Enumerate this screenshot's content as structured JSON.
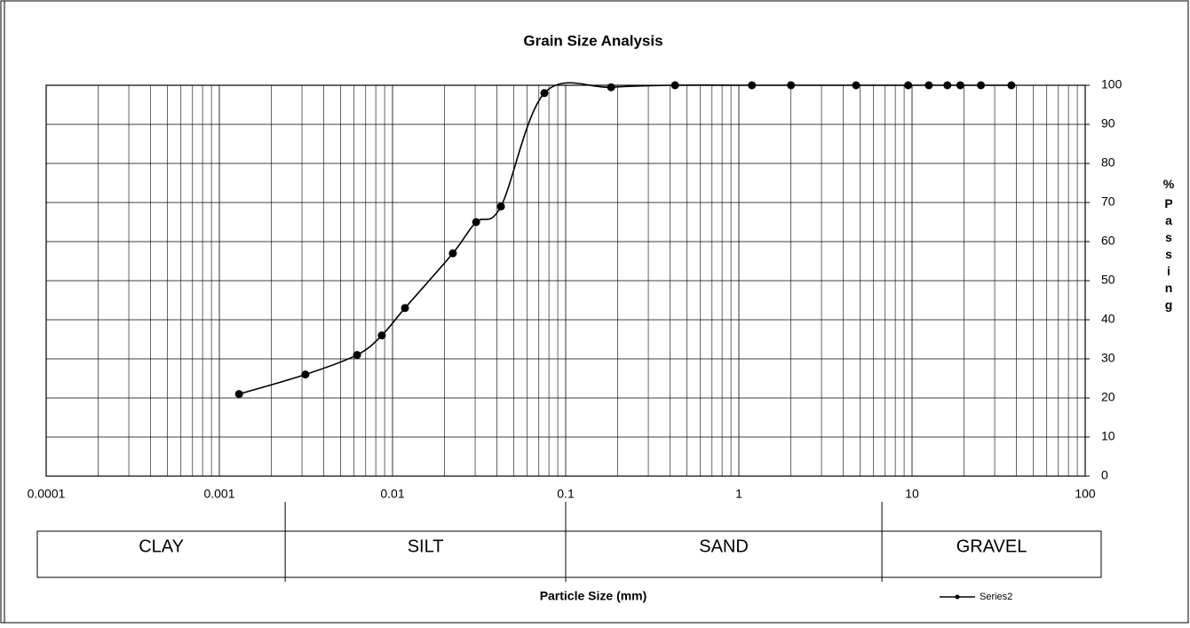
{
  "chart_data": {
    "type": "line",
    "title": "Grain Size Analysis",
    "x_label": "Particle Size (mm)",
    "y_label": "% Passing",
    "log_x": true,
    "grid": true,
    "legend_position": "bottom-right",
    "xlim": [
      0.0001,
      100
    ],
    "xticks": [
      0.0001,
      0.001,
      0.01,
      0.1,
      1,
      10,
      100
    ],
    "xminorticks": [
      0.0002,
      0.0003,
      0.0004,
      0.0005,
      0.0006,
      0.0007,
      0.0008,
      0.0009,
      0.002,
      0.003,
      0.004,
      0.005,
      0.006,
      0.007,
      0.008,
      0.009,
      0.02,
      0.03,
      0.04,
      0.05,
      0.06,
      0.07,
      0.08,
      0.09,
      0.2,
      0.3,
      0.4,
      0.5,
      0.6,
      0.7,
      0.8,
      0.9,
      2,
      3,
      4,
      5,
      6,
      7,
      8,
      9,
      20,
      30,
      40,
      50,
      60,
      70,
      80,
      90
    ],
    "ylim": [
      0,
      100
    ],
    "yticks": [
      0,
      10,
      20,
      30,
      40,
      50,
      60,
      70,
      80,
      90,
      100
    ],
    "series": [
      {
        "name": "Series2",
        "color": "#000000",
        "x": [
          0.0013,
          0.00314,
          0.00624,
          0.00867,
          0.0118,
          0.0223,
          0.0304,
          0.0423,
          0.0753,
          0.183,
          0.428,
          1.19,
          2,
          4.75,
          9.5,
          12.5,
          16,
          19,
          25,
          37.5
        ],
        "values": [
          21,
          26,
          31,
          36,
          43,
          57,
          65,
          69,
          98,
          99.5,
          100,
          100,
          100,
          100,
          100,
          100,
          100,
          100,
          100,
          100
        ]
      }
    ],
    "zones": [
      {
        "label": "CLAY"
      },
      {
        "label": "SILT"
      },
      {
        "label": "SAND"
      },
      {
        "label": "GRAVEL"
      }
    ],
    "zone_boundaries": [
      0.0024,
      0.1,
      6.7
    ]
  }
}
